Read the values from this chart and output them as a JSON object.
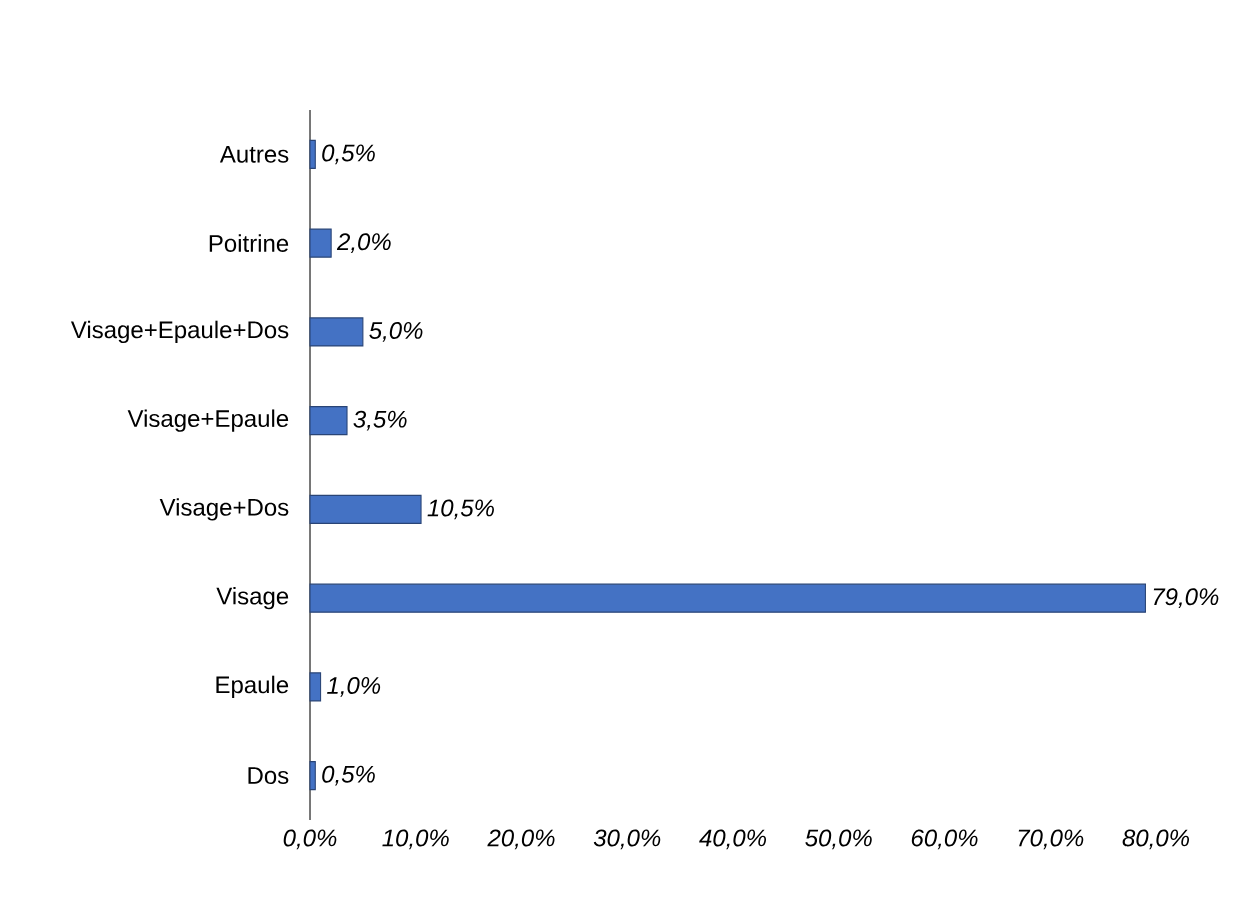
{
  "chart_data": {
    "type": "bar",
    "orientation": "horizontal",
    "categories": [
      "Autres",
      "Poitrine",
      "Visage+Epaule+Dos",
      "Visage+Epaule",
      "Visage+Dos",
      "Visage",
      "Epaule",
      "Dos"
    ],
    "values": [
      0.5,
      2.0,
      5.0,
      3.5,
      10.5,
      79.0,
      1.0,
      0.5
    ],
    "value_labels": [
      "0,5%",
      "2,0%",
      "5,0%",
      "3,5%",
      "10,5%",
      "79,0%",
      "1,0%",
      "0,5%"
    ],
    "color": "#4472c4",
    "xlim": [
      0,
      80
    ],
    "xticks": [
      {
        "value": 0,
        "label": "0,0%"
      },
      {
        "value": 10,
        "label": "10,0%"
      },
      {
        "value": 20,
        "label": "20,0%"
      },
      {
        "value": 30,
        "label": "30,0%"
      },
      {
        "value": 40,
        "label": "40,0%"
      },
      {
        "value": 50,
        "label": "50,0%"
      },
      {
        "value": 60,
        "label": "60,0%"
      },
      {
        "value": 70,
        "label": "70,0%"
      },
      {
        "value": 80,
        "label": "80,0%"
      }
    ],
    "grid": false
  }
}
